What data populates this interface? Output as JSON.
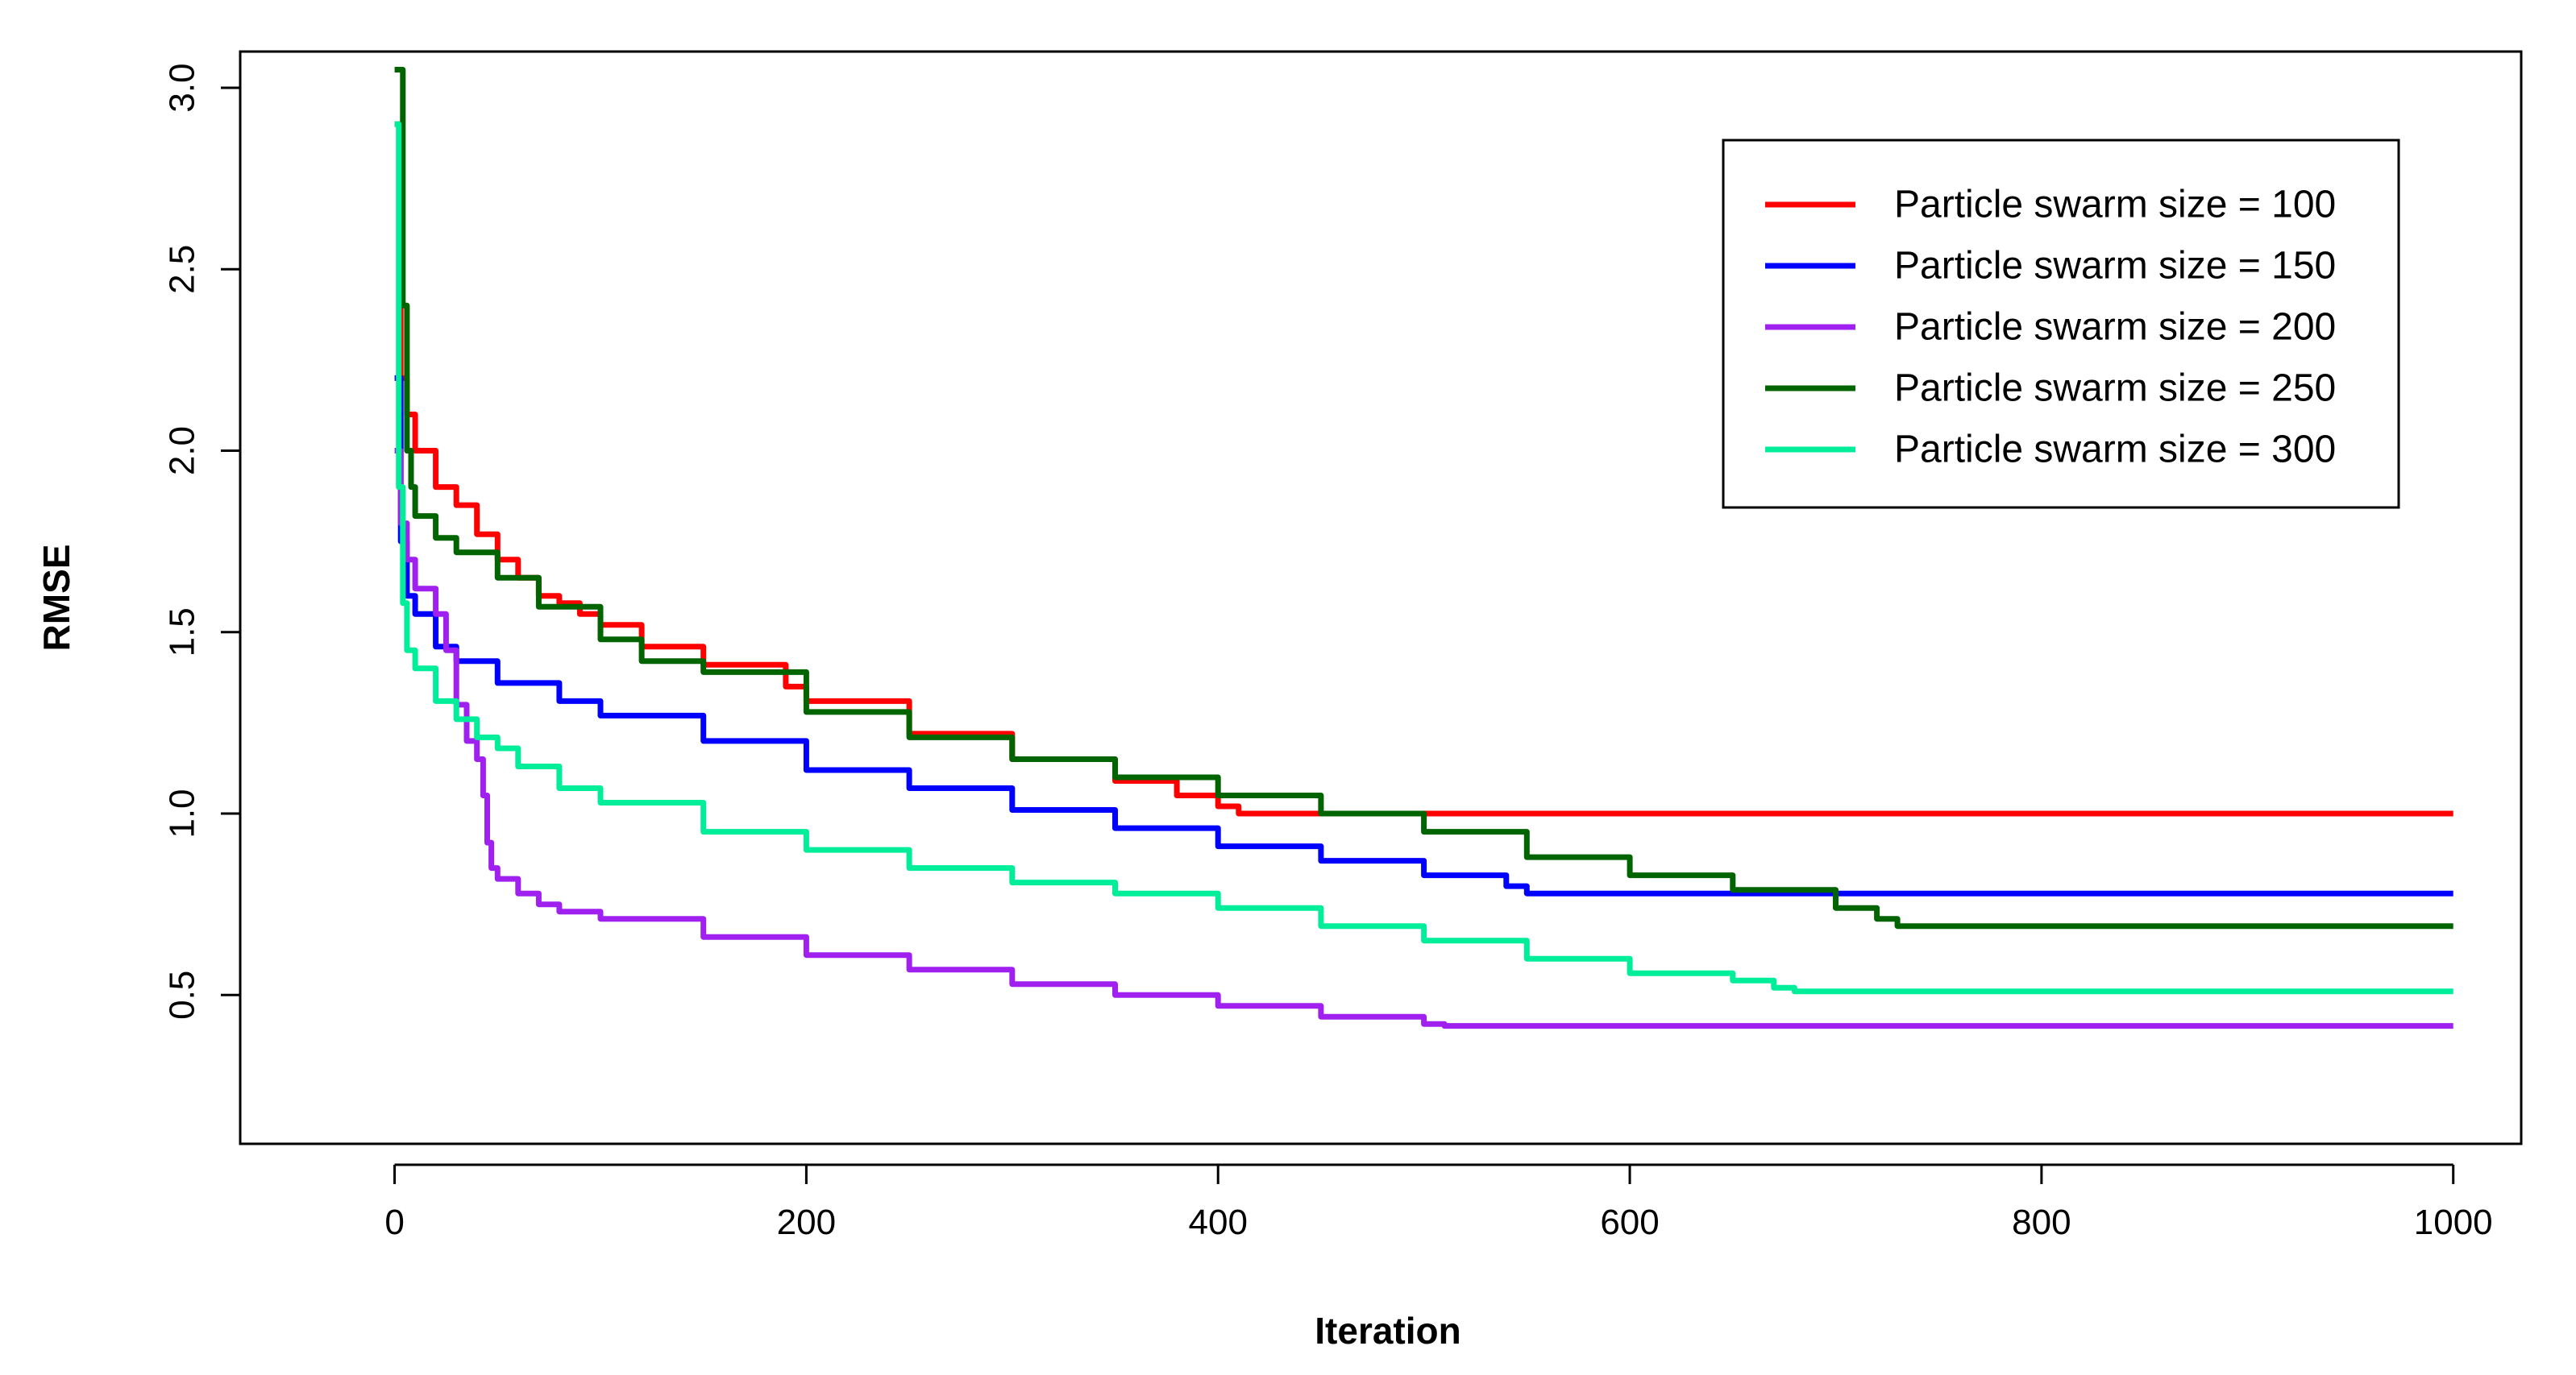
{
  "chart_data": {
    "type": "line",
    "title": "",
    "xlabel": "Iteration",
    "ylabel": "RMSE",
    "xlim": [
      -75,
      1033
    ],
    "ylim": [
      0.09,
      3.1
    ],
    "x_ticks": [
      0,
      200,
      400,
      600,
      800,
      1000
    ],
    "x_tick_labels": [
      "0",
      "200",
      "400",
      "600",
      "800",
      "1000"
    ],
    "y_ticks": [
      0.5,
      1.0,
      1.5,
      2.0,
      2.5,
      3.0
    ],
    "y_tick_labels": [
      "0.5",
      "1.0",
      "1.5",
      "2.0",
      "2.5",
      "3.0"
    ],
    "grid": false,
    "legend_position": "top-right",
    "series": [
      {
        "name": "Particle swarm size = 100",
        "color": "#ff0000",
        "x": [
          0,
          3,
          6,
          10,
          20,
          30,
          40,
          50,
          60,
          70,
          80,
          90,
          100,
          120,
          150,
          190,
          200,
          250,
          300,
          350,
          380,
          400,
          410,
          1000
        ],
        "y": [
          2.9,
          2.2,
          2.1,
          2.0,
          1.9,
          1.85,
          1.77,
          1.7,
          1.65,
          1.6,
          1.58,
          1.55,
          1.52,
          1.46,
          1.41,
          1.35,
          1.31,
          1.22,
          1.15,
          1.09,
          1.05,
          1.02,
          1.0,
          1.0
        ]
      },
      {
        "name": "Particle swarm size = 150",
        "color": "#0000ff",
        "x": [
          0,
          3,
          6,
          10,
          20,
          30,
          50,
          80,
          100,
          150,
          200,
          250,
          300,
          350,
          400,
          450,
          500,
          540,
          550,
          1000
        ],
        "y": [
          2.2,
          1.75,
          1.6,
          1.55,
          1.46,
          1.42,
          1.36,
          1.31,
          1.27,
          1.2,
          1.12,
          1.07,
          1.01,
          0.96,
          0.91,
          0.87,
          0.83,
          0.8,
          0.78,
          0.78
        ]
      },
      {
        "name": "Particle swarm size = 200",
        "color": "#a020f0",
        "x": [
          0,
          3,
          6,
          10,
          20,
          25,
          30,
          35,
          40,
          43,
          45,
          47,
          50,
          60,
          70,
          80,
          100,
          150,
          200,
          250,
          300,
          350,
          400,
          450,
          500,
          510,
          1000
        ],
        "y": [
          2.0,
          1.8,
          1.7,
          1.62,
          1.55,
          1.45,
          1.3,
          1.2,
          1.15,
          1.05,
          0.92,
          0.85,
          0.82,
          0.78,
          0.75,
          0.73,
          0.71,
          0.66,
          0.61,
          0.57,
          0.53,
          0.5,
          0.47,
          0.44,
          0.42,
          0.415,
          0.415
        ]
      },
      {
        "name": "Particle swarm size = 250",
        "color": "#006400",
        "x": [
          0,
          2,
          4,
          6,
          8,
          10,
          20,
          30,
          50,
          70,
          100,
          120,
          150,
          200,
          250,
          300,
          350,
          400,
          450,
          500,
          550,
          600,
          650,
          700,
          720,
          730,
          1000
        ],
        "y": [
          3.05,
          3.05,
          2.4,
          2.0,
          1.9,
          1.82,
          1.76,
          1.72,
          1.65,
          1.57,
          1.48,
          1.42,
          1.39,
          1.28,
          1.21,
          1.15,
          1.1,
          1.05,
          1.0,
          0.95,
          0.88,
          0.83,
          0.79,
          0.74,
          0.71,
          0.69,
          0.69
        ]
      },
      {
        "name": "Particle swarm size = 300",
        "color": "#00ee99",
        "x": [
          0,
          2,
          4,
          6,
          10,
          20,
          30,
          40,
          50,
          60,
          80,
          100,
          150,
          200,
          250,
          300,
          350,
          400,
          450,
          500,
          550,
          600,
          650,
          670,
          680,
          1000
        ],
        "y": [
          2.9,
          1.9,
          1.58,
          1.45,
          1.4,
          1.31,
          1.26,
          1.21,
          1.18,
          1.13,
          1.07,
          1.03,
          0.95,
          0.9,
          0.85,
          0.81,
          0.78,
          0.74,
          0.69,
          0.65,
          0.6,
          0.56,
          0.54,
          0.52,
          0.51,
          0.51
        ]
      }
    ]
  }
}
